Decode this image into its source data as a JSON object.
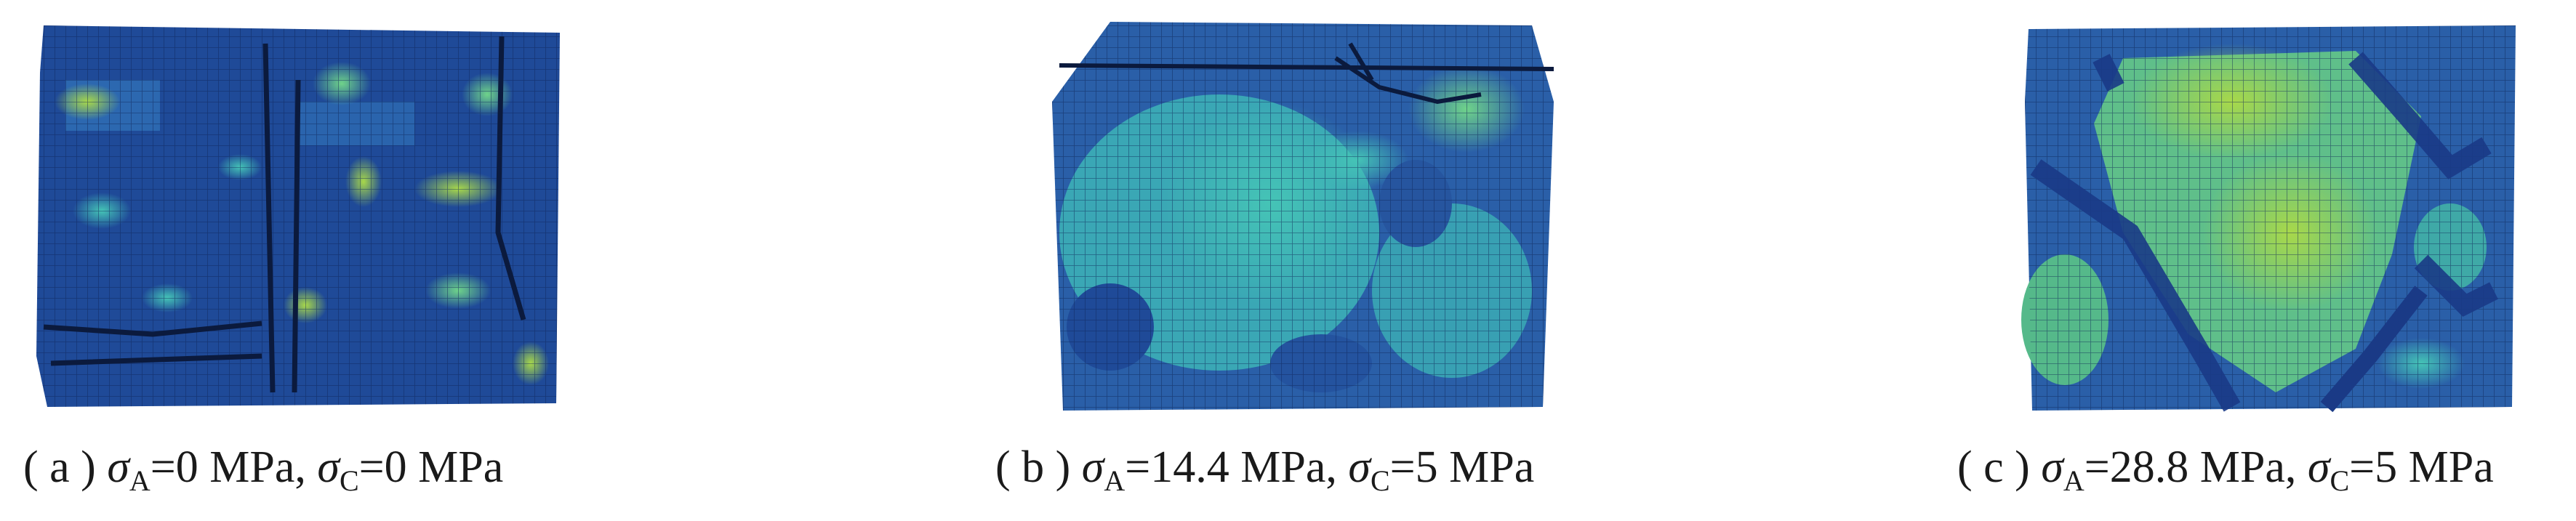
{
  "panels": [
    {
      "id": "a",
      "label": "( a )",
      "sigma_symbol": "σ",
      "sub_A": "A",
      "sigma_A": "=0 MPa,",
      "sub_C": "C",
      "sigma_C": "=0 MPa",
      "image": "blue-mesh-cylinder-sparse-green-patches"
    },
    {
      "id": "b",
      "label": "( b )",
      "sigma_symbol": "σ",
      "sub_A": "A",
      "sigma_A": "=14.4 MPa,",
      "sub_C": "C",
      "sigma_C": "=5 MPa",
      "image": "teal-mesh-cylinder-large-cyan-region"
    },
    {
      "id": "c",
      "label": "( c )",
      "sigma_symbol": "σ",
      "sub_A": "A",
      "sigma_A": "=28.8 MPa,",
      "sub_C": "C",
      "sigma_C": "=5 MPa",
      "image": "green-mesh-cylinder-damage-bands"
    }
  ],
  "colors": {
    "dark_blue": "#1d3f86",
    "mid_blue": "#2f6fb7",
    "cyan": "#3bb5b0",
    "green": "#5ccf7a",
    "yellow_green": "#a8d84a",
    "crack": "#0b1a3d"
  }
}
